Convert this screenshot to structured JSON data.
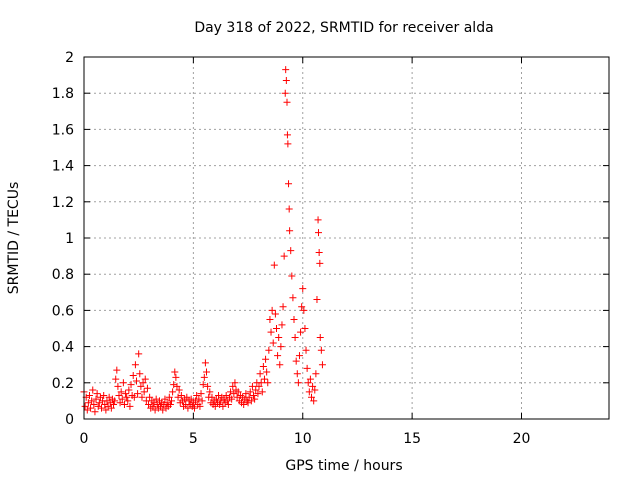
{
  "chart_data": {
    "type": "scatter",
    "title": "Day 318 of 2022, SRMTID for receiver alda",
    "xlabel": "GPS time / hours",
    "ylabel": "SRMTID / TECUs",
    "xlim": [
      0,
      24
    ],
    "ylim": [
      0,
      2
    ],
    "xticks": [
      0,
      5,
      10,
      15,
      20
    ],
    "yticks": [
      0,
      0.2,
      0.4,
      0.6,
      0.8,
      1,
      1.2,
      1.4,
      1.6,
      1.8,
      2
    ],
    "xtick_labels": [
      "0",
      "5",
      "10",
      "15",
      "20"
    ],
    "ytick_labels": [
      "0",
      "0.2",
      "0.4",
      "0.6",
      "0.8",
      "1",
      "1.2",
      "1.4",
      "1.6",
      "1.8",
      "2"
    ],
    "grid": true,
    "marker": "plus",
    "color": "#ff0000",
    "series": [
      {
        "name": "SRMTID",
        "points": [
          [
            0.0,
            0.15
          ],
          [
            0.05,
            0.07
          ],
          [
            0.1,
            0.12
          ],
          [
            0.15,
            0.05
          ],
          [
            0.2,
            0.09
          ],
          [
            0.25,
            0.13
          ],
          [
            0.3,
            0.06
          ],
          [
            0.35,
            0.1
          ],
          [
            0.4,
            0.16
          ],
          [
            0.45,
            0.08
          ],
          [
            0.5,
            0.04
          ],
          [
            0.55,
            0.11
          ],
          [
            0.6,
            0.14
          ],
          [
            0.65,
            0.07
          ],
          [
            0.7,
            0.09
          ],
          [
            0.75,
            0.12
          ],
          [
            0.8,
            0.06
          ],
          [
            0.85,
            0.1
          ],
          [
            0.9,
            0.13
          ],
          [
            0.95,
            0.08
          ],
          [
            1.0,
            0.05
          ],
          [
            1.05,
            0.1
          ],
          [
            1.1,
            0.07
          ],
          [
            1.15,
            0.12
          ],
          [
            1.2,
            0.09
          ],
          [
            1.25,
            0.06
          ],
          [
            1.3,
            0.11
          ],
          [
            1.35,
            0.08
          ],
          [
            1.4,
            0.1
          ],
          [
            1.45,
            0.22
          ],
          [
            1.5,
            0.27
          ],
          [
            1.55,
            0.18
          ],
          [
            1.6,
            0.13
          ],
          [
            1.65,
            0.09
          ],
          [
            1.7,
            0.15
          ],
          [
            1.75,
            0.11
          ],
          [
            1.8,
            0.2
          ],
          [
            1.85,
            0.08
          ],
          [
            1.9,
            0.14
          ],
          [
            1.95,
            0.12
          ],
          [
            2.0,
            0.1
          ],
          [
            2.05,
            0.16
          ],
          [
            2.1,
            0.07
          ],
          [
            2.15,
            0.19
          ],
          [
            2.2,
            0.13
          ],
          [
            2.25,
            0.24
          ],
          [
            2.3,
            0.12
          ],
          [
            2.35,
            0.3
          ],
          [
            2.4,
            0.21
          ],
          [
            2.45,
            0.14
          ],
          [
            2.5,
            0.36
          ],
          [
            2.55,
            0.25
          ],
          [
            2.6,
            0.18
          ],
          [
            2.65,
            0.12
          ],
          [
            2.7,
            0.2
          ],
          [
            2.75,
            0.15
          ],
          [
            2.8,
            0.22
          ],
          [
            2.85,
            0.1
          ],
          [
            2.9,
            0.17
          ],
          [
            2.95,
            0.08
          ],
          [
            3.0,
            0.12
          ],
          [
            3.05,
            0.06
          ],
          [
            3.1,
            0.1
          ],
          [
            3.15,
            0.07
          ],
          [
            3.2,
            0.09
          ],
          [
            3.25,
            0.05
          ],
          [
            3.3,
            0.11
          ],
          [
            3.35,
            0.08
          ],
          [
            3.4,
            0.06
          ],
          [
            3.45,
            0.1
          ],
          [
            3.5,
            0.07
          ],
          [
            3.55,
            0.09
          ],
          [
            3.6,
            0.05
          ],
          [
            3.65,
            0.08
          ],
          [
            3.7,
            0.11
          ],
          [
            3.75,
            0.06
          ],
          [
            3.8,
            0.09
          ],
          [
            3.85,
            0.07
          ],
          [
            3.9,
            0.12
          ],
          [
            3.95,
            0.08
          ],
          [
            4.0,
            0.1
          ],
          [
            4.05,
            0.15
          ],
          [
            4.1,
            0.19
          ],
          [
            4.15,
            0.26
          ],
          [
            4.2,
            0.23
          ],
          [
            4.25,
            0.18
          ],
          [
            4.3,
            0.12
          ],
          [
            4.35,
            0.16
          ],
          [
            4.4,
            0.09
          ],
          [
            4.45,
            0.13
          ],
          [
            4.5,
            0.1
          ],
          [
            4.55,
            0.07
          ],
          [
            4.6,
            0.11
          ],
          [
            4.65,
            0.08
          ],
          [
            4.7,
            0.12
          ],
          [
            4.75,
            0.06
          ],
          [
            4.8,
            0.1
          ],
          [
            4.85,
            0.08
          ],
          [
            4.9,
            0.11
          ],
          [
            4.95,
            0.07
          ],
          [
            5.0,
            0.09
          ],
          [
            5.05,
            0.06
          ],
          [
            5.1,
            0.1
          ],
          [
            5.15,
            0.13
          ],
          [
            5.2,
            0.08
          ],
          [
            5.25,
            0.11
          ],
          [
            5.3,
            0.07
          ],
          [
            5.35,
            0.14
          ],
          [
            5.4,
            0.1
          ],
          [
            5.45,
            0.19
          ],
          [
            5.5,
            0.23
          ],
          [
            5.55,
            0.31
          ],
          [
            5.6,
            0.26
          ],
          [
            5.65,
            0.18
          ],
          [
            5.7,
            0.12
          ],
          [
            5.75,
            0.15
          ],
          [
            5.8,
            0.09
          ],
          [
            5.85,
            0.12
          ],
          [
            5.9,
            0.08
          ],
          [
            5.95,
            0.1
          ],
          [
            6.0,
            0.07
          ],
          [
            6.05,
            0.11
          ],
          [
            6.1,
            0.09
          ],
          [
            6.15,
            0.13
          ],
          [
            6.2,
            0.08
          ],
          [
            6.25,
            0.1
          ],
          [
            6.3,
            0.12
          ],
          [
            6.35,
            0.07
          ],
          [
            6.4,
            0.11
          ],
          [
            6.45,
            0.09
          ],
          [
            6.5,
            0.13
          ],
          [
            6.55,
            0.1
          ],
          [
            6.6,
            0.08
          ],
          [
            6.65,
            0.12
          ],
          [
            6.7,
            0.15
          ],
          [
            6.75,
            0.11
          ],
          [
            6.8,
            0.18
          ],
          [
            6.85,
            0.14
          ],
          [
            6.9,
            0.2
          ],
          [
            6.95,
            0.16
          ],
          [
            7.0,
            0.12
          ],
          [
            7.05,
            0.15
          ],
          [
            7.1,
            0.1
          ],
          [
            7.15,
            0.13
          ],
          [
            7.2,
            0.09
          ],
          [
            7.25,
            0.12
          ],
          [
            7.3,
            0.08
          ],
          [
            7.35,
            0.11
          ],
          [
            7.4,
            0.14
          ],
          [
            7.45,
            0.1
          ],
          [
            7.5,
            0.09
          ],
          [
            7.55,
            0.12
          ],
          [
            7.6,
            0.15
          ],
          [
            7.65,
            0.1
          ],
          [
            7.7,
            0.18
          ],
          [
            7.75,
            0.13
          ],
          [
            7.8,
            0.11
          ],
          [
            7.85,
            0.16
          ],
          [
            7.9,
            0.2
          ],
          [
            7.95,
            0.14
          ],
          [
            8.0,
            0.18
          ],
          [
            8.05,
            0.25
          ],
          [
            8.1,
            0.2
          ],
          [
            8.15,
            0.15
          ],
          [
            8.2,
            0.29
          ],
          [
            8.25,
            0.22
          ],
          [
            8.3,
            0.33
          ],
          [
            8.35,
            0.26
          ],
          [
            8.4,
            0.2
          ],
          [
            8.45,
            0.38
          ],
          [
            8.5,
            0.55
          ],
          [
            8.55,
            0.48
          ],
          [
            8.6,
            0.6
          ],
          [
            8.65,
            0.42
          ],
          [
            8.7,
            0.85
          ],
          [
            8.75,
            0.58
          ],
          [
            8.8,
            0.5
          ],
          [
            8.85,
            0.35
          ],
          [
            8.9,
            0.45
          ],
          [
            8.95,
            0.3
          ],
          [
            9.0,
            0.4
          ],
          [
            9.05,
            0.52
          ],
          [
            9.1,
            0.62
          ],
          [
            9.15,
            0.9
          ],
          [
            9.2,
            1.8
          ],
          [
            9.22,
            1.93
          ],
          [
            9.25,
            1.87
          ],
          [
            9.28,
            1.75
          ],
          [
            9.3,
            1.57
          ],
          [
            9.32,
            1.52
          ],
          [
            9.35,
            1.3
          ],
          [
            9.38,
            1.16
          ],
          [
            9.4,
            1.04
          ],
          [
            9.45,
            0.93
          ],
          [
            9.5,
            0.79
          ],
          [
            9.55,
            0.67
          ],
          [
            9.6,
            0.55
          ],
          [
            9.65,
            0.45
          ],
          [
            9.7,
            0.32
          ],
          [
            9.75,
            0.25
          ],
          [
            9.8,
            0.2
          ],
          [
            9.85,
            0.35
          ],
          [
            9.9,
            0.48
          ],
          [
            9.95,
            0.62
          ],
          [
            10.0,
            0.72
          ],
          [
            10.05,
            0.6
          ],
          [
            10.1,
            0.5
          ],
          [
            10.15,
            0.38
          ],
          [
            10.2,
            0.28
          ],
          [
            10.25,
            0.2
          ],
          [
            10.3,
            0.15
          ],
          [
            10.35,
            0.22
          ],
          [
            10.4,
            0.12
          ],
          [
            10.45,
            0.18
          ],
          [
            10.5,
            0.1
          ],
          [
            10.55,
            0.16
          ],
          [
            10.6,
            0.25
          ],
          [
            10.65,
            0.66
          ],
          [
            10.7,
            1.1
          ],
          [
            10.72,
            1.03
          ],
          [
            10.75,
            0.92
          ],
          [
            10.78,
            0.86
          ],
          [
            10.8,
            0.45
          ],
          [
            10.85,
            0.38
          ],
          [
            10.9,
            0.3
          ]
        ]
      }
    ]
  }
}
